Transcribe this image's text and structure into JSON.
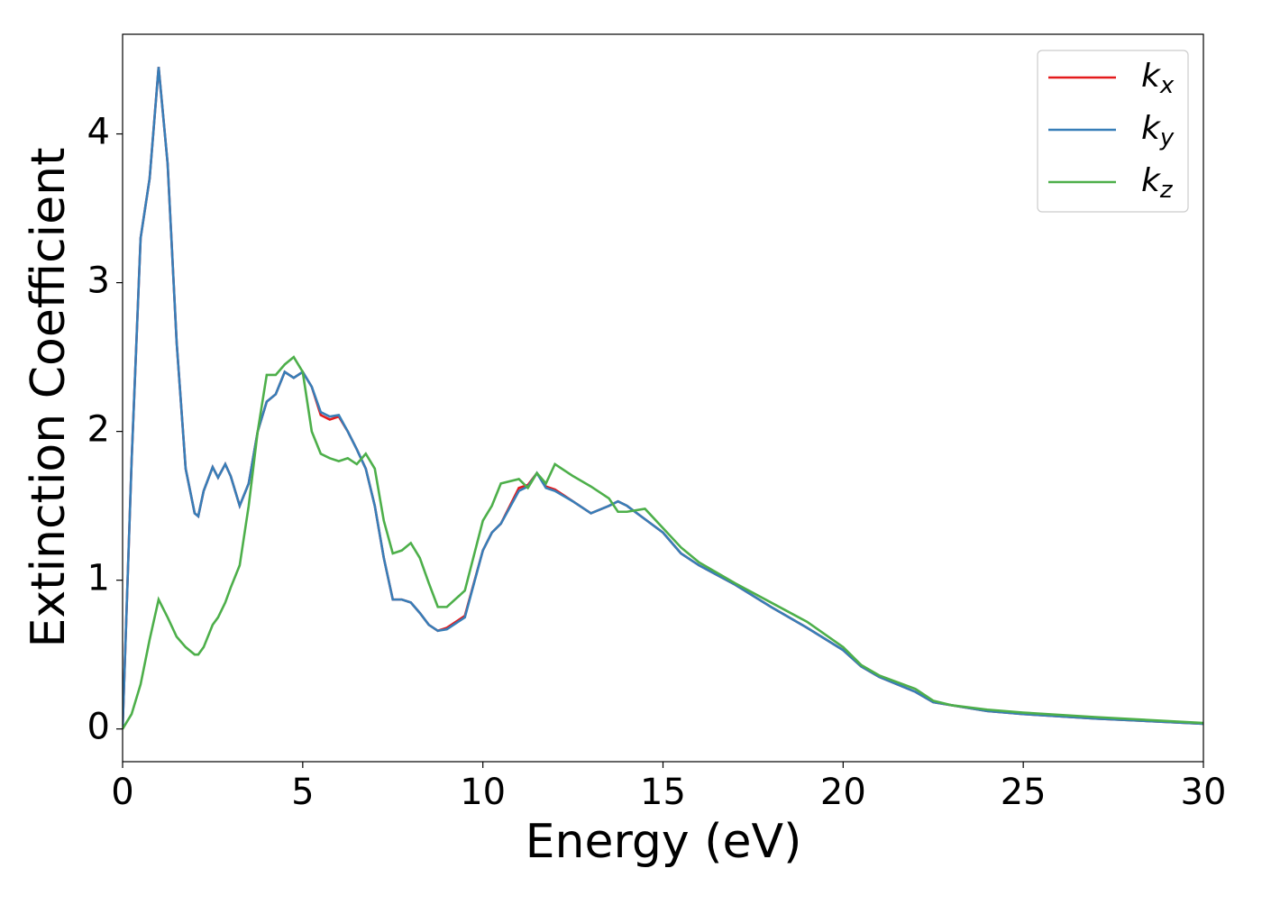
{
  "chart_data": {
    "type": "line",
    "x_label": "Energy (eV)",
    "y_label": "Extinction Coefficient",
    "x": [
      0,
      0.25,
      0.5,
      0.75,
      1,
      1.25,
      1.5,
      1.75,
      2,
      2.1,
      2.25,
      2.5,
      2.65,
      2.85,
      3,
      3.25,
      3.5,
      3.75,
      4,
      4.25,
      4.5,
      4.75,
      5,
      5.25,
      5.5,
      5.75,
      6,
      6.25,
      6.5,
      6.75,
      7,
      7.25,
      7.5,
      7.75,
      8,
      8.25,
      8.5,
      8.75,
      9,
      9.5,
      10,
      10.25,
      10.5,
      11,
      11.25,
      11.5,
      11.75,
      12,
      12.5,
      13,
      13.5,
      13.75,
      14,
      14.5,
      15,
      15.5,
      16,
      17,
      18,
      19,
      20,
      20.5,
      21,
      22,
      22.5,
      23,
      24,
      25,
      27,
      30
    ],
    "series": [
      {
        "name": "kx",
        "color": "#e41a1c",
        "values": [
          0,
          1.8,
          3.3,
          3.7,
          4.45,
          3.8,
          2.6,
          1.75,
          1.45,
          1.43,
          1.6,
          1.76,
          1.69,
          1.78,
          1.7,
          1.5,
          1.65,
          2.0,
          2.2,
          2.25,
          2.4,
          2.36,
          2.4,
          2.3,
          2.11,
          2.08,
          2.1,
          2.0,
          1.88,
          1.75,
          1.5,
          1.15,
          0.87,
          0.87,
          0.85,
          0.78,
          0.7,
          0.66,
          0.68,
          0.76,
          1.2,
          1.32,
          1.38,
          1.62,
          1.64,
          1.72,
          1.63,
          1.61,
          1.53,
          1.45,
          1.5,
          1.53,
          1.5,
          1.41,
          1.32,
          1.18,
          1.1,
          0.97,
          0.82,
          0.68,
          0.53,
          0.42,
          0.35,
          0.25,
          0.18,
          0.16,
          0.12,
          0.1,
          0.07,
          0.035
        ]
      },
      {
        "name": "ky",
        "color": "#377eb8",
        "values": [
          0,
          1.8,
          3.3,
          3.7,
          4.45,
          3.8,
          2.6,
          1.75,
          1.45,
          1.43,
          1.6,
          1.76,
          1.69,
          1.78,
          1.7,
          1.5,
          1.65,
          2.0,
          2.2,
          2.25,
          2.4,
          2.36,
          2.4,
          2.3,
          2.13,
          2.1,
          2.11,
          2.0,
          1.88,
          1.75,
          1.5,
          1.15,
          0.87,
          0.87,
          0.85,
          0.78,
          0.7,
          0.66,
          0.67,
          0.75,
          1.2,
          1.32,
          1.38,
          1.6,
          1.63,
          1.72,
          1.62,
          1.6,
          1.53,
          1.45,
          1.5,
          1.53,
          1.5,
          1.41,
          1.32,
          1.18,
          1.1,
          0.97,
          0.82,
          0.68,
          0.53,
          0.42,
          0.35,
          0.25,
          0.18,
          0.16,
          0.12,
          0.1,
          0.07,
          0.035
        ]
      },
      {
        "name": "kz",
        "color": "#4daf4a",
        "values": [
          0,
          0.1,
          0.3,
          0.6,
          0.87,
          0.75,
          0.62,
          0.55,
          0.5,
          0.5,
          0.55,
          0.7,
          0.75,
          0.85,
          0.95,
          1.1,
          1.5,
          2.0,
          2.38,
          2.38,
          2.45,
          2.5,
          2.4,
          2.0,
          1.85,
          1.82,
          1.8,
          1.82,
          1.78,
          1.85,
          1.75,
          1.4,
          1.18,
          1.2,
          1.25,
          1.15,
          0.98,
          0.82,
          0.82,
          0.93,
          1.4,
          1.5,
          1.65,
          1.68,
          1.62,
          1.72,
          1.65,
          1.78,
          1.7,
          1.63,
          1.55,
          1.46,
          1.46,
          1.48,
          1.35,
          1.22,
          1.12,
          0.98,
          0.85,
          0.72,
          0.55,
          0.43,
          0.36,
          0.27,
          0.19,
          0.16,
          0.13,
          0.11,
          0.08,
          0.04
        ]
      }
    ],
    "xlim": [
      0,
      30
    ],
    "xticks": [
      0,
      5,
      10,
      15,
      20,
      25,
      30
    ],
    "ylim": [
      -0.22,
      4.67
    ],
    "yticks": [
      0,
      1,
      2,
      3,
      4
    ],
    "grid": false,
    "legend": "upper right"
  }
}
